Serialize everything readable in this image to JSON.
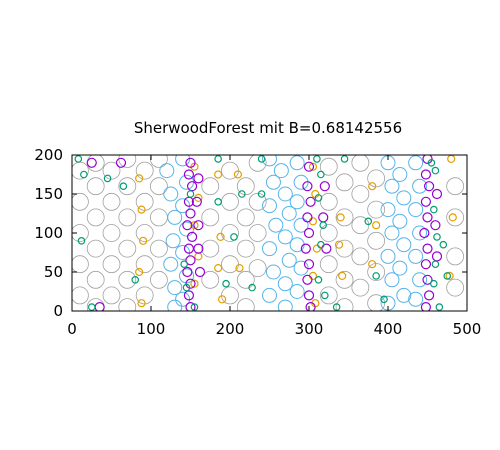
{
  "chart_data": {
    "type": "scatter",
    "title": "SherwoodForest mit B=0.68142556",
    "xlabel": "",
    "ylabel": "",
    "xlim": [
      0,
      500
    ],
    "ylim": [
      0,
      200
    ],
    "x_ticks": [
      0,
      100,
      200,
      300,
      400,
      500
    ],
    "y_ticks": [
      0,
      50,
      100,
      150,
      200
    ],
    "grid": false,
    "legend": "none",
    "marker": "circle-outline",
    "color_hex": {
      "gray": "#a0a0a0",
      "blue": "#56b4e9",
      "orange": "#e69f00",
      "purple": "#9400d3",
      "teal": "#009e73"
    },
    "series": [
      {
        "color": "gray",
        "points": [
          [
            10,
            180
          ],
          [
            10,
            140
          ],
          [
            10,
            100
          ],
          [
            10,
            60
          ],
          [
            10,
            20
          ],
          [
            30,
            190
          ],
          [
            30,
            160
          ],
          [
            30,
            120
          ],
          [
            30,
            80
          ],
          [
            30,
            40
          ],
          [
            30,
            5
          ],
          [
            50,
            180
          ],
          [
            50,
            140
          ],
          [
            50,
            100
          ],
          [
            50,
            60
          ],
          [
            50,
            20
          ],
          [
            70,
            195
          ],
          [
            70,
            160
          ],
          [
            70,
            120
          ],
          [
            70,
            80
          ],
          [
            70,
            40
          ],
          [
            70,
            5
          ],
          [
            92,
            180
          ],
          [
            92,
            140
          ],
          [
            92,
            100
          ],
          [
            92,
            60
          ],
          [
            92,
            20
          ],
          [
            110,
            195
          ],
          [
            110,
            160
          ],
          [
            110,
            120
          ],
          [
            110,
            80
          ],
          [
            110,
            40
          ],
          [
            175,
            160
          ],
          [
            175,
            120
          ],
          [
            175,
            80
          ],
          [
            175,
            40
          ],
          [
            200,
            180
          ],
          [
            200,
            140
          ],
          [
            200,
            100
          ],
          [
            200,
            60
          ],
          [
            200,
            20
          ],
          [
            220,
            160
          ],
          [
            220,
            120
          ],
          [
            220,
            80
          ],
          [
            220,
            40
          ],
          [
            220,
            5
          ],
          [
            235,
            190
          ],
          [
            235,
            140
          ],
          [
            235,
            100
          ],
          [
            235,
            55
          ],
          [
            325,
            185
          ],
          [
            325,
            140
          ],
          [
            325,
            100
          ],
          [
            325,
            60
          ],
          [
            325,
            20
          ],
          [
            345,
            165
          ],
          [
            345,
            120
          ],
          [
            345,
            80
          ],
          [
            345,
            40
          ],
          [
            345,
            5
          ],
          [
            365,
            190
          ],
          [
            365,
            150
          ],
          [
            365,
            110
          ],
          [
            365,
            70
          ],
          [
            365,
            30
          ],
          [
            385,
            170
          ],
          [
            385,
            130
          ],
          [
            385,
            90
          ],
          [
            385,
            50
          ],
          [
            385,
            10
          ],
          [
            485,
            160
          ],
          [
            485,
            120
          ],
          [
            485,
            70
          ],
          [
            485,
            30
          ]
        ]
      },
      {
        "color": "blue",
        "points": [
          [
            120,
            180
          ],
          [
            125,
            150
          ],
          [
            130,
            120
          ],
          [
            128,
            90
          ],
          [
            125,
            60
          ],
          [
            130,
            30
          ],
          [
            130,
            5
          ],
          [
            140,
            195
          ],
          [
            145,
            165
          ],
          [
            140,
            135
          ],
          [
            145,
            105
          ],
          [
            140,
            75
          ],
          [
            145,
            45
          ],
          [
            140,
            15
          ],
          [
            250,
            195
          ],
          [
            255,
            165
          ],
          [
            250,
            135
          ],
          [
            258,
            110
          ],
          [
            250,
            80
          ],
          [
            255,
            50
          ],
          [
            250,
            20
          ],
          [
            265,
            180
          ],
          [
            270,
            150
          ],
          [
            275,
            125
          ],
          [
            270,
            95
          ],
          [
            275,
            65
          ],
          [
            270,
            35
          ],
          [
            270,
            5
          ],
          [
            285,
            190
          ],
          [
            290,
            165
          ],
          [
            285,
            140
          ],
          [
            290,
            110
          ],
          [
            285,
            85
          ],
          [
            290,
            55
          ],
          [
            285,
            25
          ],
          [
            400,
            190
          ],
          [
            405,
            160
          ],
          [
            400,
            130
          ],
          [
            405,
            100
          ],
          [
            400,
            70
          ],
          [
            405,
            40
          ],
          [
            400,
            10
          ],
          [
            415,
            175
          ],
          [
            420,
            145
          ],
          [
            415,
            115
          ],
          [
            420,
            85
          ],
          [
            415,
            55
          ],
          [
            420,
            20
          ],
          [
            435,
            190
          ],
          [
            440,
            160
          ],
          [
            435,
            130
          ],
          [
            440,
            100
          ],
          [
            435,
            70
          ],
          [
            440,
            40
          ],
          [
            435,
            15
          ]
        ]
      },
      {
        "color": "orange",
        "points": [
          [
            85,
            170
          ],
          [
            88,
            130
          ],
          [
            90,
            90
          ],
          [
            85,
            50
          ],
          [
            88,
            10
          ],
          [
            155,
            185
          ],
          [
            160,
            145
          ],
          [
            155,
            110
          ],
          [
            160,
            70
          ],
          [
            155,
            35
          ],
          [
            185,
            175
          ],
          [
            188,
            95
          ],
          [
            185,
            55
          ],
          [
            190,
            15
          ],
          [
            210,
            175
          ],
          [
            212,
            55
          ],
          [
            305,
            185
          ],
          [
            308,
            150
          ],
          [
            305,
            115
          ],
          [
            310,
            80
          ],
          [
            305,
            45
          ],
          [
            308,
            10
          ],
          [
            340,
            120
          ],
          [
            338,
            85
          ],
          [
            342,
            45
          ],
          [
            380,
            160
          ],
          [
            385,
            110
          ],
          [
            380,
            60
          ],
          [
            480,
            195
          ],
          [
            482,
            120
          ],
          [
            478,
            45
          ]
        ]
      },
      {
        "color": "purple",
        "points": [
          [
            25,
            190
          ],
          [
            35,
            5
          ],
          [
            62,
            190
          ],
          [
            150,
            190
          ],
          [
            148,
            175
          ],
          [
            152,
            160
          ],
          [
            148,
            140
          ],
          [
            150,
            125
          ],
          [
            146,
            110
          ],
          [
            152,
            95
          ],
          [
            148,
            80
          ],
          [
            150,
            65
          ],
          [
            146,
            50
          ],
          [
            150,
            35
          ],
          [
            148,
            20
          ],
          [
            150,
            5
          ],
          [
            160,
            170
          ],
          [
            158,
            140
          ],
          [
            160,
            110
          ],
          [
            160,
            80
          ],
          [
            162,
            50
          ],
          [
            300,
            185
          ],
          [
            298,
            160
          ],
          [
            302,
            140
          ],
          [
            298,
            120
          ],
          [
            300,
            100
          ],
          [
            296,
            80
          ],
          [
            300,
            60
          ],
          [
            298,
            40
          ],
          [
            300,
            20
          ],
          [
            302,
            5
          ],
          [
            320,
            160
          ],
          [
            318,
            120
          ],
          [
            322,
            80
          ],
          [
            450,
            195
          ],
          [
            448,
            175
          ],
          [
            452,
            160
          ],
          [
            448,
            140
          ],
          [
            450,
            120
          ],
          [
            446,
            100
          ],
          [
            450,
            80
          ],
          [
            448,
            60
          ],
          [
            450,
            40
          ],
          [
            452,
            20
          ],
          [
            448,
            5
          ],
          [
            462,
            150
          ],
          [
            460,
            110
          ],
          [
            462,
            70
          ]
        ]
      },
      {
        "color": "teal",
        "points": [
          [
            8,
            195
          ],
          [
            15,
            175
          ],
          [
            45,
            170
          ],
          [
            12,
            90
          ],
          [
            25,
            5
          ],
          [
            65,
            160
          ],
          [
            80,
            40
          ],
          [
            150,
            150
          ],
          [
            142,
            60
          ],
          [
            145,
            30
          ],
          [
            155,
            5
          ],
          [
            185,
            195
          ],
          [
            185,
            140
          ],
          [
            215,
            150
          ],
          [
            205,
            95
          ],
          [
            195,
            35
          ],
          [
            240,
            195
          ],
          [
            240,
            150
          ],
          [
            228,
            30
          ],
          [
            310,
            195
          ],
          [
            315,
            175
          ],
          [
            312,
            145
          ],
          [
            318,
            110
          ],
          [
            315,
            85
          ],
          [
            312,
            40
          ],
          [
            320,
            20
          ],
          [
            335,
            5
          ],
          [
            345,
            195
          ],
          [
            375,
            115
          ],
          [
            385,
            45
          ],
          [
            395,
            15
          ],
          [
            455,
            190
          ],
          [
            460,
            180
          ],
          [
            458,
            130
          ],
          [
            462,
            95
          ],
          [
            460,
            60
          ],
          [
            458,
            35
          ],
          [
            465,
            5
          ],
          [
            470,
            85
          ],
          [
            475,
            45
          ]
        ]
      }
    ]
  }
}
